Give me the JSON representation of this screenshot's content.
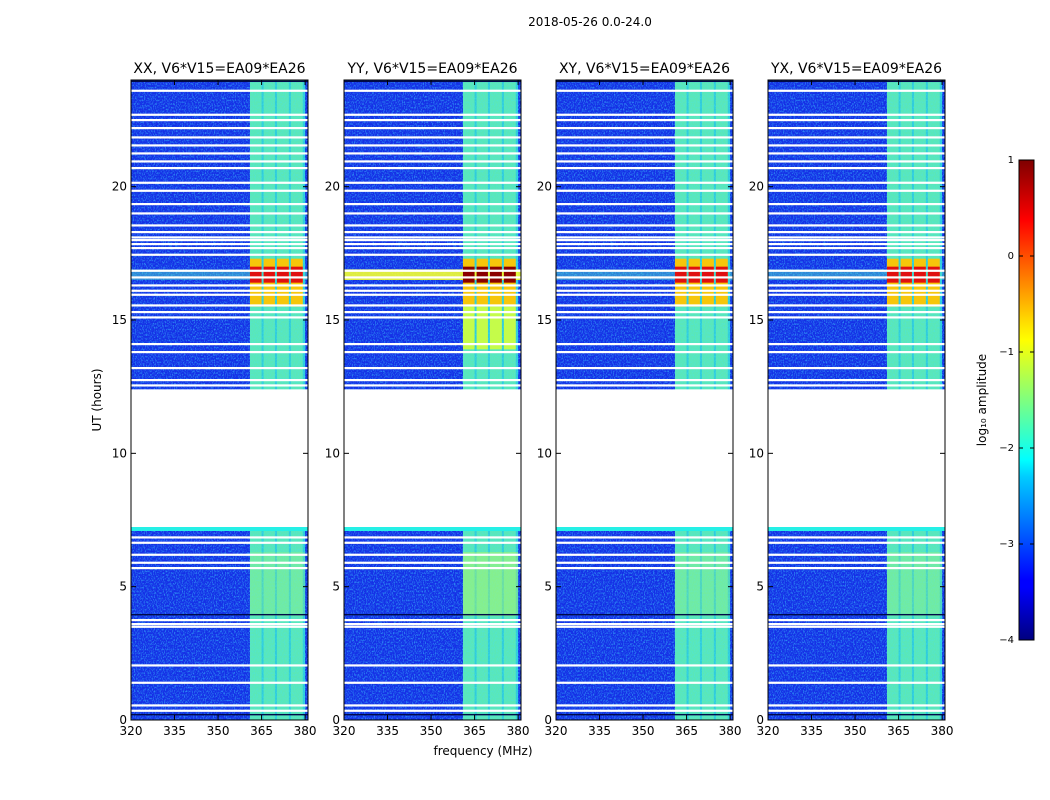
{
  "figure": {
    "title": "2018-05-26 0.0-24.0",
    "ylabel": "UT (hours)",
    "xlabel": "frequency (MHz)"
  },
  "chart_data": {
    "type": "heatmap",
    "title": "2018-05-26 0.0-24.0",
    "xlabel": "frequency (MHz)",
    "ylabel": "UT (hours)",
    "xlim": [
      320,
      381
    ],
    "ylim": [
      0,
      24
    ],
    "xticks": [
      320,
      335,
      350,
      365,
      380
    ],
    "yticks": [
      0,
      5,
      10,
      15,
      20
    ],
    "panels": [
      {
        "title": "XX, V6*V15=EA09*EA26",
        "flare": "moderate"
      },
      {
        "title": "YY, V6*V15=EA09*EA26",
        "flare": "strong"
      },
      {
        "title": "XY, V6*V15=EA09*EA26",
        "flare": "moderate"
      },
      {
        "title": "YX, V6*V15=EA09*EA26",
        "flare": "moderate"
      }
    ],
    "data_gap_hours": [
      7.2,
      12.4
    ],
    "flare_hours": [
      15.5,
      17.3
    ],
    "rfi_band_mhz": [
      361,
      380
    ],
    "rfi_channels_mhz": [
      [
        361,
        365
      ],
      [
        365.7,
        369.6
      ],
      [
        370.3,
        374.4
      ],
      [
        375.1,
        379.2
      ]
    ],
    "flagged_times_hours": [
      0.35,
      0.55,
      1.4,
      2.05,
      3.5,
      3.6,
      3.75,
      5.7,
      5.9,
      6.2,
      6.65,
      6.85,
      12.55,
      12.75,
      13.2,
      13.8,
      14.1,
      15.1,
      15.3,
      15.55,
      15.95,
      16.1,
      16.3,
      16.6,
      16.85,
      17.45,
      17.7,
      17.85,
      18.0,
      18.1,
      18.3,
      18.55,
      19.0,
      19.35,
      19.85,
      20.15,
      20.7,
      20.95,
      21.25,
      21.55,
      21.85,
      22.2,
      22.5,
      22.7,
      23.6
    ],
    "colorbar": {
      "label": "log₁₀ amplitude",
      "range": [
        -4,
        1
      ],
      "ticks": [
        "1",
        "0",
        "−1",
        "−2",
        "−3",
        "−4"
      ]
    }
  }
}
